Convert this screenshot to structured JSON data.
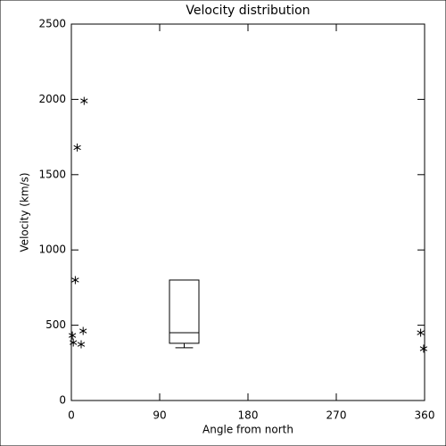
{
  "chart_data": [
    {
      "type": "scatter",
      "title": "Velocity distribution",
      "xlabel": "Angle from north",
      "ylabel": "Velocity (km/s)",
      "x": [
        13,
        6,
        4,
        12,
        1,
        2,
        10,
        356,
        359
      ],
      "y": [
        1990,
        1680,
        800,
        462,
        432,
        385,
        373,
        450,
        344
      ],
      "marker": "asterisk",
      "color": "#000000",
      "xlim": [
        0,
        360
      ],
      "xticks": [
        0,
        90,
        180,
        270,
        360
      ],
      "ylim": [
        0,
        2500
      ],
      "yticks": [
        0,
        500,
        1000,
        1500,
        2000,
        2500
      ]
    },
    {
      "type": "box",
      "x_range": [
        100,
        130
      ],
      "min": 350,
      "q1": 380,
      "median": 450,
      "q3": 800,
      "color": "#000000"
    }
  ]
}
